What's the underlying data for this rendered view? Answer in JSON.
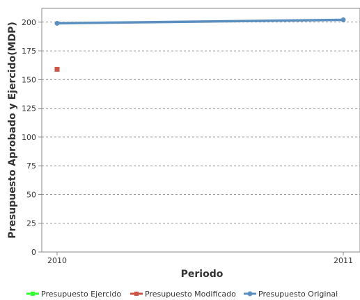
{
  "chart_data": {
    "type": "line",
    "title": "",
    "xlabel": "Periodo",
    "ylabel": "Presupuesto Aprobado y Ejercido(MDP)",
    "categories": [
      "2010",
      "2011"
    ],
    "ylim": [
      0,
      212
    ],
    "yticks": [
      0,
      25,
      50,
      75,
      100,
      125,
      150,
      175,
      200
    ],
    "grid": true,
    "legend_position": "bottom",
    "series": [
      {
        "name": "Presupuesto Ejercido",
        "color": "#33ff33",
        "values": [
          159,
          null
        ]
      },
      {
        "name": "Presupuesto Modificado",
        "color": "#cc5544",
        "values": [
          159,
          null
        ]
      },
      {
        "name": "Presupuesto Original",
        "color": "#5b8fc0",
        "values": [
          199,
          202
        ]
      }
    ]
  }
}
